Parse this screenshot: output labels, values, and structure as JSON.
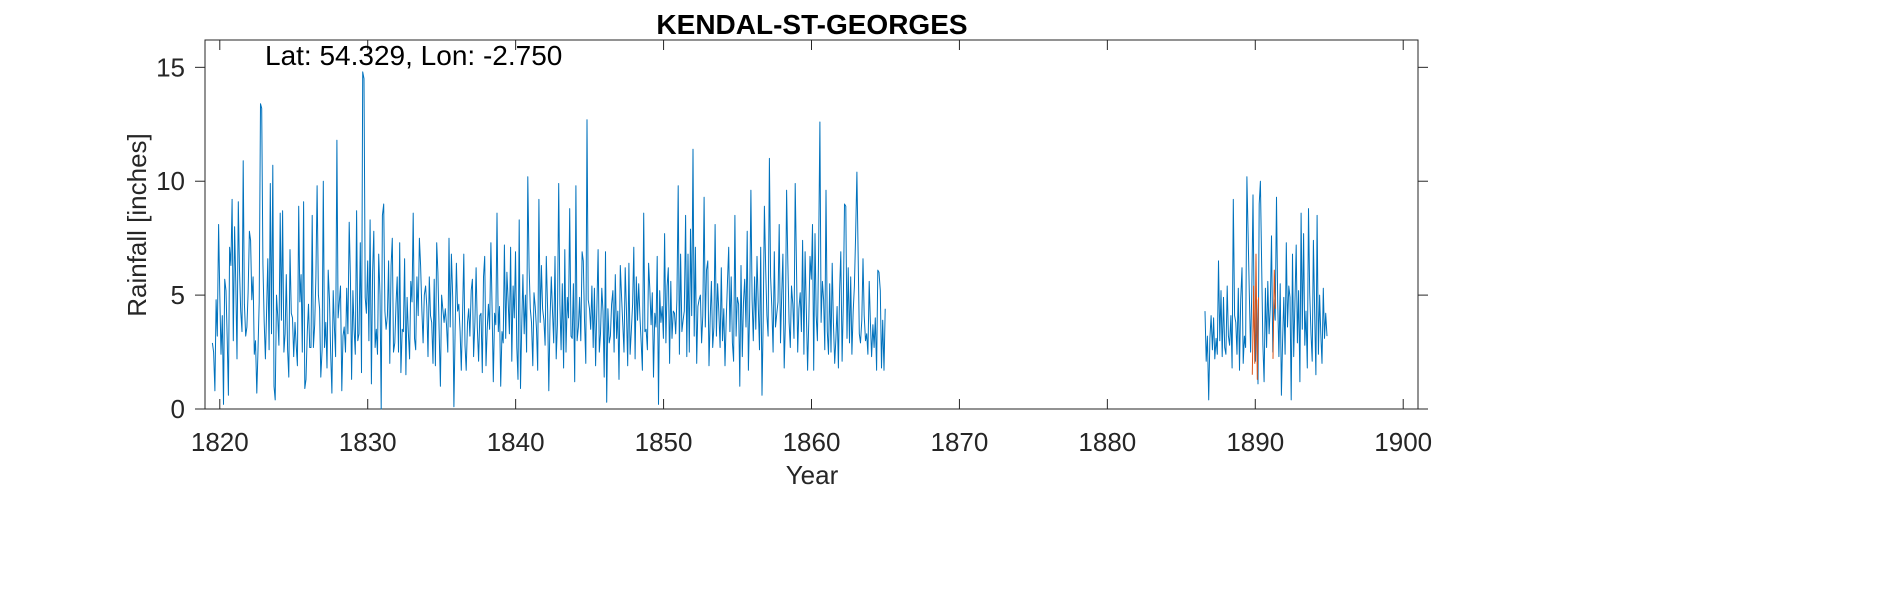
{
  "chart_data": {
    "type": "line",
    "title": "KENDAL-ST-GEORGES",
    "annotation": "Lat: 54.329, Lon: -2.750",
    "xlabel": "Year",
    "ylabel": "Rainfall [inches]",
    "xlim": [
      1819,
      1901
    ],
    "ylim": [
      0,
      16.2
    ],
    "xticks": [
      1820,
      1830,
      1840,
      1850,
      1860,
      1870,
      1880,
      1890,
      1900
    ],
    "yticks": [
      0,
      5,
      10,
      15
    ],
    "grid": false,
    "box": true,
    "colors": {
      "main": "#0072BD",
      "secondary": "#D95319",
      "axis": "#262626"
    },
    "series": [
      {
        "segments": [
          {
            "start": 1819.5,
            "step": 0.0833,
            "values": [
              2.9,
              2.5,
              0.8,
              4.8,
              3.2,
              8.1,
              5.0,
              2.4,
              4.1,
              0.2,
              5.7,
              5.2,
              3.1,
              0.6,
              7.1,
              6.3,
              9.2,
              3.0,
              8.0,
              5.5,
              2.2,
              9.1,
              6.1,
              4.3,
              3.4,
              10.9,
              4.6,
              3.2,
              3.6,
              5.1,
              7.8,
              7.4,
              4.8,
              5.8,
              2.4,
              3.0,
              0.7,
              2.6,
              4.7,
              13.4,
              13.2,
              6.4,
              3.8,
              2.2,
              4.3,
              6.6,
              2.6,
              9.9,
              3.3,
              10.7,
              1.0,
              0.4,
              5.0,
              4.1,
              2.8,
              8.6,
              3.9,
              8.7,
              2.5,
              3.3,
              5.9,
              2.6,
              1.4,
              7.0,
              4.2,
              4.0,
              2.3,
              3.8,
              2.8,
              1.9,
              8.9,
              4.7,
              5.9,
              2.5,
              9.1,
              0.9,
              1.3,
              3.4,
              4.6,
              2.7,
              2.7,
              8.5,
              2.7,
              3.7,
              5.8,
              9.8,
              5.0,
              4.4,
              1.4,
              2.6,
              10.0,
              2.7,
              3.8,
              1.8,
              6.1,
              4.8,
              2.4,
              0.7,
              5.2,
              3.6,
              2.3,
              11.8,
              4.0,
              4.7,
              5.4,
              0.8,
              3.2,
              3.6,
              2.5,
              5.3,
              3.3,
              8.2,
              5.8,
              1.3,
              5.2,
              3.5,
              2.4,
              8.7,
              3.0,
              3.3,
              7.3,
              1.6,
              14.8,
              14.5,
              4.9,
              4.2,
              6.5,
              3.0,
              8.3,
              1.1,
              6.0,
              7.8,
              2.7,
              3.5,
              2.4,
              6.8,
              5.0,
              0.0,
              8.5,
              9.0,
              4.3,
              3.5,
              4.1,
              6.5,
              2.0,
              6.3,
              7.5,
              2.5,
              2.9,
              4.6,
              5.8,
              2.5,
              7.3,
              1.6,
              3.5,
              3.4,
              6.6,
              1.5,
              4.9,
              3.4,
              2.2,
              5.6,
              4.7,
              8.6,
              3.1,
              2.6,
              5.8,
              4.1,
              7.5,
              6.3,
              4.3,
              2.9,
              5.0,
              5.4,
              4.5,
              2.3,
              5.8,
              4.1,
              3.8,
              2.0,
              5.7,
              1.9,
              7.3,
              6.0,
              3.5,
              1.0,
              5.0,
              4.4,
              3.8,
              4.4,
              3.7,
              2.5,
              7.5,
              3.6,
              6.8,
              4.9,
              0.1,
              3.4,
              6.4,
              4.3,
              4.6,
              3.4,
              1.7,
              4.0,
              6.8,
              2.8,
              1.7,
              3.8,
              4.4,
              3.2,
              5.2,
              5.7,
              2.3,
              3.8,
              6.2,
              3.6,
              2.1,
              4.1,
              4.2,
              1.6,
              5.8,
              6.7,
              1.9,
              3.5,
              4.6,
              3.5,
              7.3,
              4.4,
              1.2,
              4.2,
              3.7,
              8.6,
              3.4,
              4.5,
              1.0,
              3.4,
              2.9,
              7.2,
              3.1,
              6.0,
              4.8,
              3.3,
              7.1,
              2.1,
              5.4,
              4.0,
              6.9,
              2.7,
              1.3,
              8.3,
              0.9,
              3.6,
              5.9,
              3.3,
              5.0,
              2.5,
              10.2,
              6.2,
              4.4,
              3.8,
              1.9,
              5.1,
              4.5,
              3.5,
              1.7,
              9.2,
              3.8,
              6.3,
              4.4,
              3.9,
              2.8,
              6.7,
              4.4,
              0.8,
              3.9,
              5.8,
              4.3,
              2.9,
              6.7,
              2.2,
              3.7,
              9.9,
              4.6,
              2.6,
              5.5,
              1.8,
              7.0,
              2.5,
              4.9,
              4.0,
              8.8,
              3.2,
              3.1,
              5.5,
              1.2,
              9.8,
              3.0,
              3.6,
              4.9,
              3.0,
              6.9,
              6.5,
              3.9,
              2.0,
              12.7,
              4.8,
              4.4,
              3.5,
              5.4,
              2.7,
              5.3,
              1.9,
              4.5,
              7.0,
              2.5,
              3.3,
              5.3,
              4.3,
              1.4,
              6.9,
              0.3,
              4.4,
              2.9,
              3.2,
              4.6,
              5.2,
              2.5,
              5.9,
              3.1,
              4.3,
              1.3,
              6.3,
              5.0,
              3.8,
              2.5,
              6.2,
              4.4,
              1.9,
              6.4,
              2.4,
              3.5,
              4.6,
              7.1,
              2.2,
              5.8,
              3.9,
              5.5,
              4.0,
              2.9,
              1.7,
              8.6,
              3.4,
              3.5,
              2.6,
              6.4,
              5.3,
              3.7,
              5.1,
              1.4,
              4.2,
              3.6,
              6.7,
              0.2,
              5.2,
              3.8,
              4.5,
              3.1,
              7.7,
              2.9,
              5.4,
              6.2,
              2.0,
              5.6,
              3.1,
              4.3,
              4.2,
              3.3,
              4.8,
              9.8,
              2.4,
              6.8,
              3.4,
              3.9,
              4.3,
              8.5,
              2.3,
              6.8,
              2.5,
              7.9,
              4.1,
              11.4,
              3.2,
              7.1,
              2.0,
              4.5,
              4.8,
              5.0,
              2.9,
              4.1,
              9.3,
              3.6,
              6.1,
              6.5,
              1.9,
              4.0,
              5.6,
              2.7,
              3.6,
              8.1,
              3.2,
              5.5,
              4.3,
              2.7,
              6.2,
              3.0,
              4.4,
              1.9,
              3.9,
              5.6,
              7.1,
              3.4,
              5.8,
              2.9,
              2.1,
              8.5,
              3.2,
              4.9,
              4.6,
              1.0,
              6.3,
              2.3,
              4.7,
              5.7,
              3.6,
              7.8,
              1.7,
              4.3,
              9.6,
              4.8,
              3.0,
              5.8,
              3.5,
              6.7,
              4.5,
              2.6,
              7.1,
              0.6,
              3.9,
              8.9,
              6.1,
              4.1,
              3.2,
              11.0,
              5.8,
              4.5,
              2.5,
              6.9,
              3.6,
              4.2,
              4.7,
              8.1,
              2.9,
              5.0,
              6.8,
              1.8,
              3.8,
              9.6,
              6.5,
              3.8,
              2.7,
              5.4,
              4.6,
              3.1,
              9.9,
              6.2,
              2.5,
              4.4,
              5.1,
              3.4,
              7.4,
              2.4,
              6.9,
              4.4,
              1.7,
              3.9,
              6.7,
              5.7,
              8.1,
              1.7,
              7.7,
              4.1,
              3.0,
              7.2,
              12.6,
              3.8,
              5.6,
              4.8,
              2.6,
              9.6,
              3.4,
              2.4,
              5.5,
              2.5,
              6.4,
              3.8,
              2.0,
              3.1,
              4.5,
              1.8,
              5.2,
              6.9,
              2.1,
              4.6,
              9.0,
              8.9,
              3.1,
              6.2,
              2.9,
              5.8,
              2.4,
              4.3,
              5.4,
              7.6,
              10.4,
              6.9,
              3.3,
              2.9,
              3.9,
              6.6,
              4.1,
              3.0,
              3.3,
              2.4,
              5.6,
              3.8,
              2.3,
              3.7,
              2.7,
              4.0,
              1.7,
              6.1,
              6.0,
              5.2,
              1.8,
              3.9,
              1.7,
              4.4
            ]
          },
          {
            "start": 1886.6,
            "step": 0.0833,
            "values": [
              4.3,
              2.1,
              3.2,
              0.4,
              3.1,
              4.1,
              2.6,
              4.0,
              2.2,
              3.1,
              2.4,
              6.5,
              3.0,
              5.2,
              2.3,
              4.9,
              2.7,
              2.4,
              5.4,
              3.2,
              2.8,
              4.1,
              1.8,
              9.2,
              4.1,
              3.8,
              2.4,
              5.3,
              1.7,
              4.8,
              6.2,
              2.0,
              3.2,
              2.7,
              10.2,
              7.7,
              5.1,
              2.5,
              5.2,
              9.4,
              3.6,
              2.1,
              4.8,
              1.1,
              9.0,
              10.0,
              6.2,
              2.8,
              1.2,
              5.3,
              2.7,
              5.6,
              3.3,
              4.5,
              7.6,
              2.5,
              4.8,
              3.9,
              9.3,
              4.7,
              2.3,
              5.5,
              0.6,
              3.0,
              4.9,
              2.4,
              7.3,
              3.6,
              5.4,
              4.9,
              0.4,
              6.8,
              2.3,
              4.6,
              7.2,
              2.9,
              5.2,
              1.2,
              8.6,
              3.5,
              7.7,
              2.8,
              4.3,
              1.8,
              8.8,
              5.1,
              3.3,
              2.1,
              7.4,
              4.1,
              1.5,
              8.5,
              2.4,
              5.0,
              3.3,
              2.0,
              5.3,
              3.1,
              4.2,
              3.2
            ]
          }
        ]
      },
      {
        "segments": [
          {
            "start": 1889.8,
            "step": 0.0833,
            "values": [
              1.5,
              5.4,
              2.0,
              6.8,
              1.3,
              4.9
            ]
          },
          {
            "start": 1891.2,
            "step": 0.0833,
            "values": [
              2.2,
              6.1,
              4.4
            ]
          }
        ]
      }
    ]
  }
}
